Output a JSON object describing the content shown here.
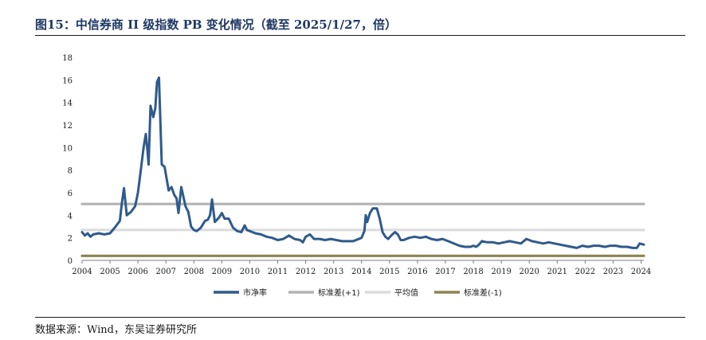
{
  "figure": {
    "title": "图15：中信券商 II 级指数 PB 变化情况（截至 2025/1/27，倍）",
    "source": "数据来源：Wind，东吴证券研究所"
  },
  "chart_data": {
    "type": "line",
    "title": "",
    "xlabel": "",
    "ylabel": "",
    "xlim": [
      2004,
      2024.1
    ],
    "ylim": [
      0,
      18
    ],
    "yticks": [
      0,
      2,
      4,
      6,
      8,
      10,
      12,
      14,
      16,
      18
    ],
    "xticks": [
      2004,
      2005,
      2006,
      2007,
      2008,
      2009,
      2010,
      2011,
      2012,
      2013,
      2014,
      2015,
      2016,
      2017,
      2018,
      2019,
      2020,
      2021,
      2022,
      2023,
      2024
    ],
    "grid": false,
    "legend_position": "bottom",
    "series": [
      {
        "name": "市净率",
        "color": "#2f5a8c",
        "x": [
          2004.0,
          2004.1,
          2004.2,
          2004.3,
          2004.4,
          2004.6,
          2004.8,
          2005.0,
          2005.2,
          2005.35,
          2005.42,
          2005.5,
          2005.6,
          2005.75,
          2005.9,
          2006.0,
          2006.1,
          2006.2,
          2006.28,
          2006.33,
          2006.38,
          2006.45,
          2006.55,
          2006.62,
          2006.68,
          2006.75,
          2006.85,
          2006.95,
          2007.1,
          2007.2,
          2007.3,
          2007.38,
          2007.45,
          2007.55,
          2007.7,
          2007.8,
          2007.9,
          2008.0,
          2008.1,
          2008.25,
          2008.4,
          2008.5,
          2008.58,
          2008.65,
          2008.75,
          2008.9,
          2009.0,
          2009.1,
          2009.25,
          2009.4,
          2009.55,
          2009.7,
          2009.82,
          2009.9,
          2010.0,
          2010.2,
          2010.4,
          2010.6,
          2010.8,
          2011.0,
          2011.2,
          2011.4,
          2011.6,
          2011.8,
          2011.9,
          2012.0,
          2012.15,
          2012.3,
          2012.5,
          2012.7,
          2012.9,
          2013.1,
          2013.3,
          2013.5,
          2013.7,
          2013.9,
          2014.0,
          2014.1,
          2014.15,
          2014.2,
          2014.3,
          2014.4,
          2014.55,
          2014.65,
          2014.75,
          2014.85,
          2014.95,
          2015.1,
          2015.2,
          2015.3,
          2015.4,
          2015.5,
          2015.7,
          2015.9,
          2016.1,
          2016.3,
          2016.5,
          2016.7,
          2016.9,
          2017.1,
          2017.3,
          2017.5,
          2017.7,
          2017.9,
          2018.0,
          2018.1,
          2018.2,
          2018.3,
          2018.5,
          2018.7,
          2018.9,
          2019.1,
          2019.3,
          2019.5,
          2019.7,
          2019.9,
          2020.1,
          2020.3,
          2020.5,
          2020.7,
          2020.9,
          2021.1,
          2021.3,
          2021.5,
          2021.7,
          2021.9,
          2022.1,
          2022.3,
          2022.5,
          2022.7,
          2022.9,
          2023.1,
          2023.3,
          2023.5,
          2023.7,
          2023.85,
          2023.95,
          2024.1
        ],
        "values": [
          2.5,
          2.2,
          2.4,
          2.1,
          2.3,
          2.4,
          2.3,
          2.4,
          3.0,
          3.5,
          5.0,
          6.4,
          4.0,
          4.3,
          4.8,
          6.0,
          8.0,
          10.0,
          11.2,
          10.0,
          8.5,
          13.7,
          12.7,
          13.5,
          15.8,
          16.2,
          8.5,
          8.3,
          6.2,
          6.5,
          5.8,
          5.5,
          4.2,
          6.5,
          4.8,
          4.3,
          3.0,
          2.7,
          2.6,
          2.9,
          3.5,
          3.6,
          4.0,
          5.4,
          3.4,
          3.8,
          4.2,
          3.7,
          3.7,
          2.9,
          2.6,
          2.5,
          3.1,
          2.7,
          2.6,
          2.4,
          2.3,
          2.1,
          2.0,
          1.8,
          1.9,
          2.2,
          1.9,
          1.8,
          1.6,
          2.1,
          2.3,
          1.9,
          1.9,
          1.8,
          1.9,
          1.8,
          1.7,
          1.7,
          1.7,
          1.9,
          2.0,
          2.6,
          4.0,
          3.4,
          4.2,
          4.6,
          4.6,
          3.7,
          2.5,
          2.1,
          1.9,
          2.3,
          2.5,
          2.3,
          1.8,
          1.8,
          2.0,
          2.1,
          2.0,
          2.1,
          1.9,
          1.8,
          1.9,
          1.7,
          1.5,
          1.3,
          1.2,
          1.2,
          1.3,
          1.2,
          1.4,
          1.7,
          1.6,
          1.6,
          1.5,
          1.6,
          1.7,
          1.6,
          1.5,
          1.9,
          1.7,
          1.6,
          1.5,
          1.6,
          1.5,
          1.4,
          1.3,
          1.2,
          1.1,
          1.3,
          1.2,
          1.3,
          1.3,
          1.2,
          1.3,
          1.3,
          1.2,
          1.2,
          1.1,
          1.1,
          1.5,
          1.4
        ]
      },
      {
        "name": "标准差(+1)",
        "color": "#b3b3b3",
        "x": [
          2004.0,
          2024.1
        ],
        "values": [
          5.0,
          5.0
        ]
      },
      {
        "name": "平均值",
        "color": "#dcdcdc",
        "x": [
          2004.0,
          2024.1
        ],
        "values": [
          2.7,
          2.7
        ]
      },
      {
        "name": "标准差(-1)",
        "color": "#8c8351",
        "x": [
          2004.0,
          2024.1
        ],
        "values": [
          0.4,
          0.4
        ]
      }
    ]
  }
}
